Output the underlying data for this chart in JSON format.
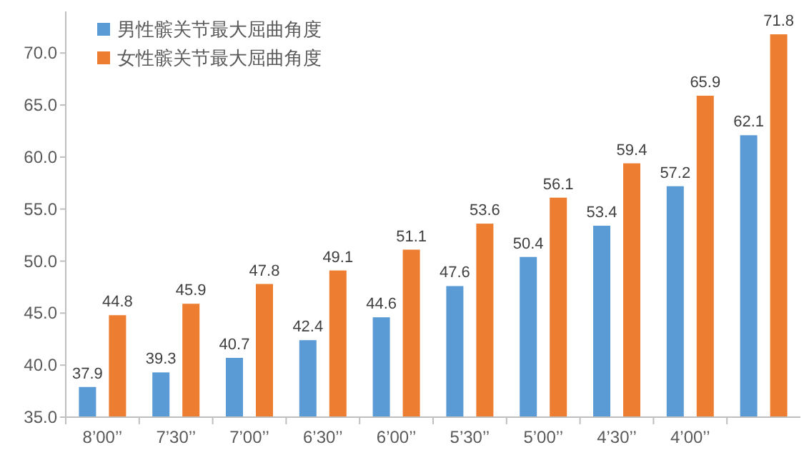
{
  "chart_data": {
    "type": "bar",
    "categories": [
      "8’00’’",
      "7’30’’",
      "7’00’’",
      "6’30’’",
      "6’00’’",
      "5’30’’",
      "5’00’’",
      "4’30’’",
      "4’00’’",
      null
    ],
    "series": [
      {
        "name": "男性髌关节最大屈曲角度",
        "color": "#5b9bd5",
        "values": [
          37.9,
          39.3,
          40.7,
          42.4,
          44.6,
          47.6,
          50.4,
          53.4,
          57.2,
          62.1
        ]
      },
      {
        "name": "女性髌关节最大屈曲角度",
        "color": "#ed7d31",
        "values": [
          44.8,
          45.9,
          47.8,
          49.1,
          51.1,
          53.6,
          56.1,
          59.4,
          65.9,
          71.8
        ]
      }
    ],
    "ylim": [
      35,
      74
    ],
    "yticks": [
      {
        "value": 35,
        "label": "35.0"
      },
      {
        "value": 40,
        "label": "40.0"
      },
      {
        "value": 45,
        "label": "45.0"
      },
      {
        "value": 50,
        "label": "50.0"
      },
      {
        "value": 55,
        "label": "55.0"
      },
      {
        "value": 60,
        "label": "60.0"
      },
      {
        "value": 65,
        "label": "65.0"
      },
      {
        "value": 70,
        "label": "70.0"
      }
    ],
    "data_labels": true,
    "legend": "top left",
    "grid": false
  }
}
